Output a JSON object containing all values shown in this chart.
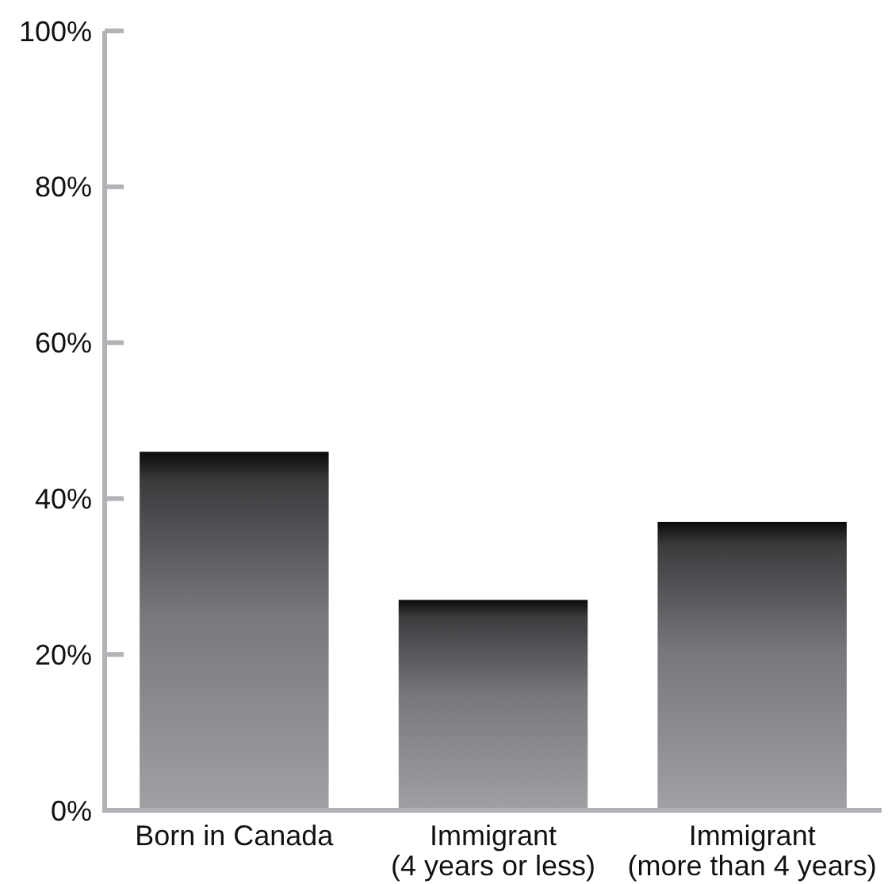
{
  "chart_data": {
    "type": "bar",
    "categories": [
      "Born in Canada",
      "Immigrant\n(4 years or less)",
      "Immigrant\n(more than 4 years)"
    ],
    "values": [
      46,
      27,
      37
    ],
    "color": "#a0a1a4",
    "ylim": [
      0,
      100
    ],
    "yticks": [
      {
        "value": 0,
        "label": "0%"
      },
      {
        "value": 20,
        "label": "20%"
      },
      {
        "value": 40,
        "label": "40%"
      },
      {
        "value": 60,
        "label": "60%"
      },
      {
        "value": 80,
        "label": "80%"
      },
      {
        "value": 100,
        "label": "100%"
      }
    ]
  }
}
